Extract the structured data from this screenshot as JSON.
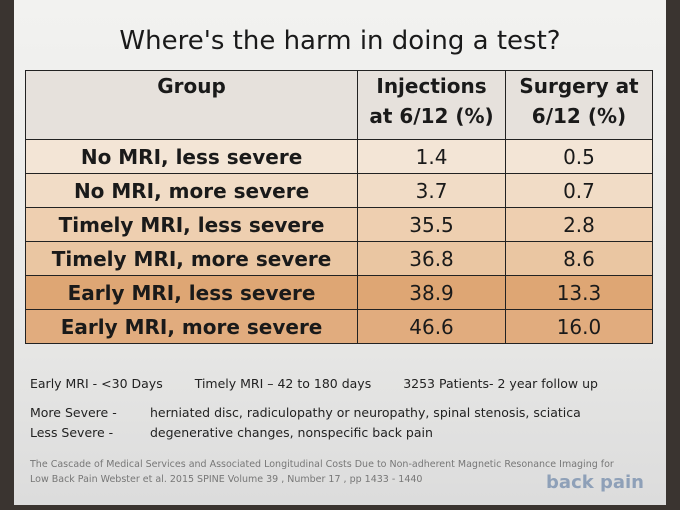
{
  "title": "Where's the harm in doing a test?",
  "table": {
    "header": [
      "Group",
      "Injections at 6/12 (%)",
      "Surgery at 6/12 (%)"
    ],
    "rows": [
      [
        "No MRI, less severe",
        "1.4",
        "0.5"
      ],
      [
        "No MRI, more severe",
        "3.7",
        "0.7"
      ],
      [
        "Timely MRI, less severe",
        "35.5",
        "2.8"
      ],
      [
        "Timely MRI, more severe",
        "36.8",
        "8.6"
      ],
      [
        "Early MRI, less severe",
        "38.9",
        "13.3"
      ],
      [
        "Early MRI, more severe",
        "46.6",
        "16.0"
      ]
    ]
  },
  "notes": {
    "line1": [
      "Early MRI - <30 Days",
      "Timely MRI – 42 to 180 days",
      "3253 Patients- 2 year follow up"
    ],
    "definitions": [
      {
        "term": "More Severe  -",
        "text": "herniated disc, radiculopathy or neuropathy, spinal stenosis, sciatica"
      },
      {
        "term": "Less Severe -",
        "text": "degenerative changes, nonspecific back pain"
      }
    ]
  },
  "citation": "The Cascade of Medical Services and Associated Longitudinal Costs Due to Non-adherent Magnetic Resonance Imaging for Low Back Pain Webster et al. 2015 SPINE Volume 39 , Number 17 , pp 1433 - 1440",
  "logo": "back pain"
}
